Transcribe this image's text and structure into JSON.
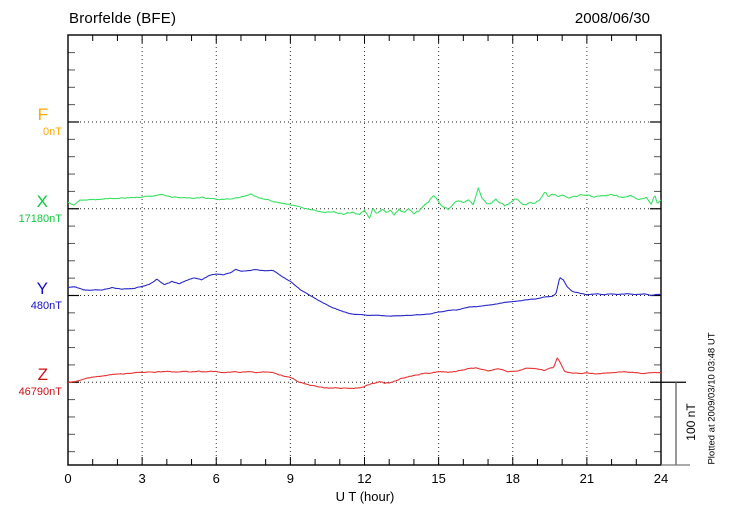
{
  "header": {
    "station_title": "Brorfelde (BFE)",
    "date": "2008/06/30"
  },
  "footer": {
    "plotted_note": "Plotted at 2009/03/10 03:48 UT"
  },
  "chart_data": {
    "type": "line",
    "title": "Brorfelde (BFE)",
    "date": "2008/06/30",
    "xlabel": "U T (hour)",
    "x_range": [
      0,
      24
    ],
    "x_ticks": [
      0,
      3,
      6,
      9,
      12,
      15,
      18,
      21,
      24
    ],
    "x_minor_tick_step_hours": 1,
    "grid": "dotted vertical lines every 3 h; dotted horizontal line at each channel baseline",
    "scale_bar": {
      "label": "100 nT",
      "nT": 100
    },
    "points_format": "[UT_hour, offset_nT_from_baseline]",
    "channels": [
      {
        "name": "F",
        "baseline_label": "0nT",
        "baseline_nT": 0,
        "label_color": "#ffaa00",
        "trace_color": "#ffaa00",
        "noise_profile": [
          [
            0,
            0
          ],
          [
            24,
            0
          ]
        ],
        "points": []
      },
      {
        "name": "X",
        "baseline_label": "17180nT",
        "baseline_nT": 17180,
        "label_color": "#0fc93c",
        "trace_color": "#38e261",
        "noise_profile": [
          [
            0,
            0.8
          ],
          [
            10,
            0.9
          ],
          [
            12,
            2.2
          ],
          [
            19,
            1.8
          ],
          [
            24,
            1.2
          ]
        ],
        "points": [
          [
            0,
            8
          ],
          [
            0.25,
            4
          ],
          [
            0.5,
            10
          ],
          [
            1,
            11
          ],
          [
            1.5,
            12
          ],
          [
            2,
            13
          ],
          [
            2.5,
            13
          ],
          [
            3,
            14
          ],
          [
            3.5,
            16
          ],
          [
            3.8,
            17
          ],
          [
            4.2,
            14
          ],
          [
            4.6,
            13
          ],
          [
            5,
            13
          ],
          [
            5.4,
            14
          ],
          [
            5.8,
            12
          ],
          [
            6.2,
            11
          ],
          [
            6.6,
            12
          ],
          [
            7,
            14
          ],
          [
            7.4,
            17
          ],
          [
            7.8,
            13
          ],
          [
            8.2,
            10
          ],
          [
            8.6,
            7
          ],
          [
            9,
            5
          ],
          [
            9.4,
            2
          ],
          [
            9.7,
            0
          ],
          [
            10,
            -2
          ],
          [
            10.4,
            -5
          ],
          [
            10.8,
            -4
          ],
          [
            11.2,
            -6
          ],
          [
            11.5,
            -4
          ],
          [
            11.8,
            -7
          ],
          [
            12,
            -2
          ],
          [
            12.2,
            -10
          ],
          [
            12.35,
            1
          ],
          [
            12.5,
            -6
          ],
          [
            12.7,
            -1
          ],
          [
            12.9,
            -6
          ],
          [
            13.05,
            -2
          ],
          [
            13.2,
            -6
          ],
          [
            13.4,
            0
          ],
          [
            13.6,
            -5
          ],
          [
            13.8,
            -1
          ],
          [
            14,
            -5
          ],
          [
            14.2,
            -2
          ],
          [
            14.5,
            7
          ],
          [
            14.8,
            16
          ],
          [
            15,
            10
          ],
          [
            15.2,
            2
          ],
          [
            15.4,
            -1
          ],
          [
            15.6,
            5
          ],
          [
            15.8,
            10
          ],
          [
            16,
            6
          ],
          [
            16.2,
            10
          ],
          [
            16.4,
            5
          ],
          [
            16.6,
            25
          ],
          [
            16.75,
            14
          ],
          [
            16.9,
            8
          ],
          [
            17.1,
            5
          ],
          [
            17.3,
            11
          ],
          [
            17.5,
            7
          ],
          [
            17.7,
            4
          ],
          [
            17.9,
            8
          ],
          [
            18.1,
            12
          ],
          [
            18.3,
            7
          ],
          [
            18.5,
            4
          ],
          [
            18.7,
            8
          ],
          [
            18.9,
            6
          ],
          [
            19.1,
            11
          ],
          [
            19.3,
            20
          ],
          [
            19.45,
            14
          ],
          [
            19.6,
            18
          ],
          [
            19.8,
            16
          ],
          [
            20,
            17
          ],
          [
            20.3,
            14
          ],
          [
            20.6,
            16
          ],
          [
            21,
            17
          ],
          [
            21.3,
            14
          ],
          [
            21.6,
            16
          ],
          [
            22,
            17
          ],
          [
            22.4,
            14
          ],
          [
            22.8,
            16
          ],
          [
            23.1,
            10
          ],
          [
            23.4,
            14
          ],
          [
            23.6,
            5
          ],
          [
            23.75,
            17
          ],
          [
            23.85,
            7
          ],
          [
            24,
            12
          ]
        ]
      },
      {
        "name": "Y",
        "baseline_label": "480nT",
        "baseline_nT": 480,
        "label_color": "#1111cc",
        "trace_color": "#2a2ac8",
        "noise_profile": [
          [
            0,
            0.7
          ],
          [
            12,
            0.5
          ],
          [
            24,
            0.5
          ]
        ],
        "points": [
          [
            0,
            10
          ],
          [
            0.3,
            11
          ],
          [
            0.6,
            7
          ],
          [
            1,
            6
          ],
          [
            1.4,
            7
          ],
          [
            1.8,
            10
          ],
          [
            2.2,
            7
          ],
          [
            2.6,
            8
          ],
          [
            3,
            11
          ],
          [
            3.3,
            14
          ],
          [
            3.6,
            20
          ],
          [
            3.9,
            13
          ],
          [
            4.2,
            17
          ],
          [
            4.5,
            14
          ],
          [
            4.8,
            18
          ],
          [
            5.1,
            22
          ],
          [
            5.4,
            19
          ],
          [
            5.7,
            24
          ],
          [
            6,
            26
          ],
          [
            6.3,
            25
          ],
          [
            6.6,
            28
          ],
          [
            6.8,
            32
          ],
          [
            7,
            29
          ],
          [
            7.3,
            30
          ],
          [
            7.6,
            31
          ],
          [
            8,
            30
          ],
          [
            8.3,
            30
          ],
          [
            8.6,
            24
          ],
          [
            9,
            17
          ],
          [
            9.4,
            7
          ],
          [
            9.8,
            0
          ],
          [
            10.2,
            -7
          ],
          [
            10.6,
            -13
          ],
          [
            11,
            -18
          ],
          [
            11.4,
            -22
          ],
          [
            11.8,
            -23
          ],
          [
            12.2,
            -24
          ],
          [
            12.6,
            -24
          ],
          [
            13,
            -25
          ],
          [
            13.4,
            -24
          ],
          [
            13.8,
            -24
          ],
          [
            14.2,
            -23
          ],
          [
            14.6,
            -22
          ],
          [
            15,
            -20
          ],
          [
            15.4,
            -18
          ],
          [
            15.8,
            -17
          ],
          [
            16.2,
            -14
          ],
          [
            16.6,
            -13
          ],
          [
            17,
            -12
          ],
          [
            17.4,
            -10
          ],
          [
            17.8,
            -8
          ],
          [
            18.2,
            -7
          ],
          [
            18.6,
            -5
          ],
          [
            19,
            -4
          ],
          [
            19.3,
            -2
          ],
          [
            19.6,
            -1
          ],
          [
            19.75,
            2
          ],
          [
            19.9,
            22
          ],
          [
            20.05,
            19
          ],
          [
            20.2,
            11
          ],
          [
            20.35,
            6
          ],
          [
            20.5,
            4
          ],
          [
            20.8,
            2
          ],
          [
            21.1,
            1
          ],
          [
            21.4,
            2
          ],
          [
            21.7,
            1
          ],
          [
            22,
            2
          ],
          [
            22.3,
            1
          ],
          [
            22.7,
            2
          ],
          [
            23,
            1
          ],
          [
            23.3,
            2
          ],
          [
            23.6,
            0
          ],
          [
            23.8,
            1
          ],
          [
            24,
            1
          ]
        ]
      },
      {
        "name": "Z",
        "baseline_label": "46790nT",
        "baseline_nT": 46790,
        "label_color": "#cc1111",
        "trace_color": "#e83434",
        "noise_profile": [
          [
            0,
            0.6
          ],
          [
            12,
            0.9
          ],
          [
            24,
            0.6
          ]
        ],
        "points": [
          [
            0,
            0
          ],
          [
            0.3,
            1
          ],
          [
            0.6,
            4
          ],
          [
            1,
            6
          ],
          [
            1.5,
            8
          ],
          [
            2,
            10
          ],
          [
            2.5,
            11
          ],
          [
            3,
            12
          ],
          [
            3.5,
            12
          ],
          [
            4,
            13
          ],
          [
            4.3,
            12
          ],
          [
            4.6,
            13
          ],
          [
            5,
            12
          ],
          [
            5.3,
            13
          ],
          [
            5.6,
            12
          ],
          [
            6,
            13
          ],
          [
            6.3,
            12
          ],
          [
            6.6,
            13
          ],
          [
            7,
            12
          ],
          [
            7.3,
            13
          ],
          [
            7.6,
            12
          ],
          [
            8,
            12
          ],
          [
            8.4,
            11
          ],
          [
            8.8,
            7
          ],
          [
            9.1,
            4
          ],
          [
            9.4,
            0
          ],
          [
            9.8,
            -4
          ],
          [
            10.2,
            -6
          ],
          [
            10.6,
            -7
          ],
          [
            11,
            -7
          ],
          [
            11.4,
            -8
          ],
          [
            11.8,
            -7
          ],
          [
            12.1,
            -4
          ],
          [
            12.4,
            -1
          ],
          [
            12.6,
            1
          ],
          [
            12.8,
            -1
          ],
          [
            13.1,
            0
          ],
          [
            13.4,
            4
          ],
          [
            13.8,
            7
          ],
          [
            14.2,
            10
          ],
          [
            14.6,
            11
          ],
          [
            15,
            13
          ],
          [
            15.4,
            12
          ],
          [
            15.8,
            14
          ],
          [
            16.2,
            17
          ],
          [
            16.6,
            17
          ],
          [
            17,
            14
          ],
          [
            17.4,
            16
          ],
          [
            17.8,
            13
          ],
          [
            18.2,
            14
          ],
          [
            18.6,
            17
          ],
          [
            19,
            16
          ],
          [
            19.3,
            14
          ],
          [
            19.5,
            16
          ],
          [
            19.65,
            17
          ],
          [
            19.8,
            29
          ],
          [
            19.95,
            22
          ],
          [
            20.1,
            13
          ],
          [
            20.4,
            11
          ],
          [
            20.7,
            10
          ],
          [
            21,
            11
          ],
          [
            21.4,
            10
          ],
          [
            21.8,
            11
          ],
          [
            22.2,
            12
          ],
          [
            22.5,
            13
          ],
          [
            22.8,
            12
          ],
          [
            23.2,
            11
          ],
          [
            23.6,
            11
          ],
          [
            24,
            12
          ]
        ]
      }
    ]
  }
}
